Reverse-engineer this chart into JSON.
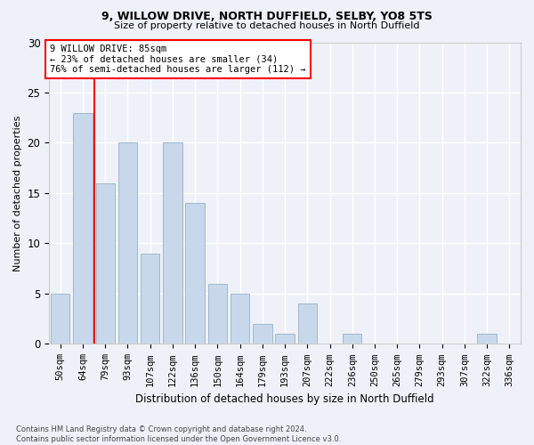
{
  "title1": "9, WILLOW DRIVE, NORTH DUFFIELD, SELBY, YO8 5TS",
  "title2": "Size of property relative to detached houses in North Duffield",
  "xlabel": "Distribution of detached houses by size in North Duffield",
  "ylabel": "Number of detached properties",
  "categories": [
    "50sqm",
    "64sqm",
    "79sqm",
    "93sqm",
    "107sqm",
    "122sqm",
    "136sqm",
    "150sqm",
    "164sqm",
    "179sqm",
    "193sqm",
    "207sqm",
    "222sqm",
    "236sqm",
    "250sqm",
    "265sqm",
    "279sqm",
    "293sqm",
    "307sqm",
    "322sqm",
    "336sqm"
  ],
  "values": [
    5,
    23,
    16,
    20,
    9,
    20,
    14,
    6,
    5,
    2,
    1,
    4,
    0,
    1,
    0,
    0,
    0,
    0,
    0,
    1,
    0
  ],
  "bar_color": "#c8d8ea",
  "bar_edge_color": "#a0b8cc",
  "vline_x": 1.5,
  "vline_color": "red",
  "annotation_text": "9 WILLOW DRIVE: 85sqm\n← 23% of detached houses are smaller (34)\n76% of semi-detached houses are larger (112) →",
  "annotation_box_color": "white",
  "annotation_box_edge": "red",
  "ylim": [
    0,
    30
  ],
  "yticks": [
    0,
    5,
    10,
    15,
    20,
    25,
    30
  ],
  "footer": "Contains HM Land Registry data © Crown copyright and database right 2024.\nContains public sector information licensed under the Open Government Licence v3.0.",
  "bg_color": "#eef2f8",
  "plot_bg_color": "#eef2f8",
  "grid_color": "white"
}
